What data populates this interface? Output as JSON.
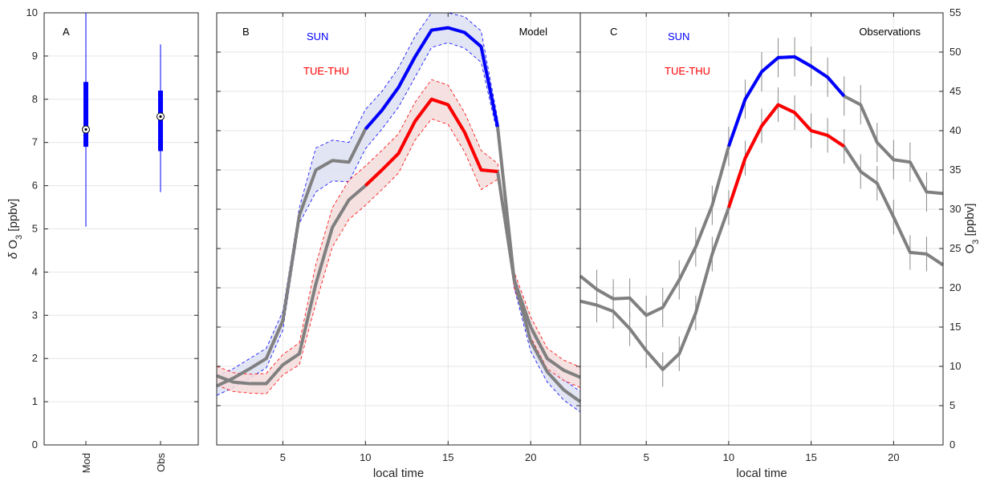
{
  "chart_data": [
    {
      "panel": "A",
      "type": "box",
      "ylabel": "δ O3 [ppbv]",
      "ylim": [
        0,
        10
      ],
      "yticks": [
        0,
        1,
        2,
        3,
        4,
        5,
        6,
        7,
        8,
        9,
        10
      ],
      "categories": [
        "Mod",
        "Obs"
      ],
      "boxes": [
        {
          "name": "Mod",
          "median": 7.3,
          "q1": 6.9,
          "q3": 8.4,
          "whisker_low": 5.05,
          "whisker_high": 10.0
        },
        {
          "name": "Obs",
          "median": 7.6,
          "q1": 6.8,
          "q3": 8.2,
          "whisker_low": 5.85,
          "whisker_high": 9.27
        }
      ],
      "color": "#0000ff",
      "grid": true
    },
    {
      "panel": "B",
      "type": "line",
      "title": "Model",
      "xlabel": "local time",
      "xlim": [
        1,
        23
      ],
      "xticks": [
        5,
        10,
        15,
        20
      ],
      "ylim": [
        0,
        55
      ],
      "grid": true,
      "legend": [
        {
          "label": "SUN",
          "color": "#0000ff"
        },
        {
          "label": "TUE-THU",
          "color": "#ff0000"
        }
      ],
      "highlight_range": [
        10,
        18
      ],
      "x": [
        1,
        2,
        3,
        4,
        5,
        6,
        7,
        8,
        9,
        10,
        11,
        12,
        13,
        14,
        15,
        16,
        17,
        18,
        19,
        20,
        21,
        22,
        23
      ],
      "series": [
        {
          "name": "SUN",
          "values": [
            7.5,
            8.5,
            9.7,
            11.0,
            15.8,
            29.2,
            35.0,
            36.2,
            36.0,
            40.2,
            42.6,
            45.5,
            49.4,
            52.8,
            53.1,
            52.5,
            50.7,
            40.5,
            21.0,
            13.2,
            9.3,
            7.0,
            5.5
          ],
          "upper": [
            8.8,
            9.7,
            11.0,
            12.3,
            17.0,
            30.2,
            37.8,
            38.8,
            38.5,
            42.7,
            45.0,
            48.0,
            52.0,
            55.0,
            55.0,
            54.5,
            52.7,
            41.5,
            22.0,
            14.5,
            10.6,
            8.3,
            6.8
          ],
          "lower": [
            6.3,
            7.3,
            8.5,
            9.8,
            14.6,
            28.2,
            32.2,
            33.6,
            33.5,
            37.7,
            40.2,
            43.0,
            46.8,
            50.6,
            51.2,
            50.5,
            48.7,
            39.5,
            20.0,
            11.9,
            8.0,
            5.7,
            4.2
          ]
        },
        {
          "name": "TUE-THU",
          "values": [
            8.8,
            8.0,
            7.8,
            7.8,
            10.2,
            11.6,
            20.5,
            27.7,
            31.2,
            33.0,
            35.0,
            37.1,
            41.2,
            44.0,
            43.3,
            39.8,
            35.0,
            34.8,
            21.0,
            15.0,
            11.0,
            9.5,
            8.6
          ],
          "upper": [
            10.0,
            9.2,
            9.0,
            9.1,
            11.5,
            13.0,
            23.0,
            30.2,
            33.7,
            35.5,
            37.5,
            39.6,
            43.6,
            46.5,
            45.8,
            42.3,
            37.5,
            35.8,
            22.0,
            16.3,
            12.3,
            10.8,
            9.9
          ],
          "lower": [
            7.6,
            6.8,
            6.6,
            6.5,
            8.9,
            10.2,
            18.0,
            25.2,
            28.7,
            30.5,
            32.5,
            34.6,
            38.8,
            41.5,
            40.8,
            37.3,
            32.5,
            33.8,
            20.0,
            13.7,
            9.7,
            8.2,
            7.3
          ]
        }
      ]
    },
    {
      "panel": "C",
      "type": "line",
      "title": "Observations",
      "xlabel": "local time",
      "xlim": [
        1,
        23
      ],
      "xticks": [
        5,
        10,
        15,
        20
      ],
      "ylabel": "O3 [ppbv]",
      "ylim": [
        0,
        55
      ],
      "yticks": [
        0,
        5,
        10,
        15,
        20,
        25,
        30,
        35,
        40,
        45,
        50,
        55
      ],
      "grid": true,
      "legend": [
        {
          "label": "SUN",
          "color": "#0000ff"
        },
        {
          "label": "TUE-THU",
          "color": "#ff0000"
        }
      ],
      "highlight_range": [
        10,
        17
      ],
      "x": [
        1,
        2,
        3,
        4,
        5,
        6,
        7,
        8,
        9,
        10,
        11,
        12,
        13,
        14,
        15,
        16,
        17,
        18,
        19,
        20,
        21,
        22,
        23
      ],
      "series": [
        {
          "name": "SUN",
          "values": [
            21.5,
            19.8,
            18.6,
            18.7,
            16.5,
            17.5,
            21.0,
            25.2,
            30.5,
            38.0,
            44.0,
            47.5,
            49.3,
            49.4,
            48.2,
            46.8,
            44.4,
            43.3,
            38.5,
            36.3,
            36.0,
            32.2,
            32.0
          ],
          "err": [
            2.5,
            2.5,
            2.5,
            2.5,
            2.5,
            2.5,
            2.5,
            2.5,
            2.5,
            2.5,
            2.5,
            2.5,
            2.5,
            2.5,
            2.5,
            2.5,
            2.5,
            2.5,
            2.5,
            2.5,
            2.5,
            2.5,
            2.5
          ]
        },
        {
          "name": "TUE-THU",
          "values": [
            18.3,
            17.8,
            17.0,
            14.8,
            12.0,
            9.6,
            11.6,
            16.8,
            24.3,
            30.2,
            36.5,
            40.6,
            43.3,
            42.3,
            40.0,
            39.4,
            38.0,
            34.8,
            33.3,
            29.0,
            24.5,
            24.3,
            22.9
          ],
          "err": [
            2.2,
            2.2,
            2.2,
            2.2,
            2.2,
            2.2,
            2.2,
            2.2,
            2.2,
            2.2,
            2.2,
            2.2,
            2.2,
            2.2,
            2.2,
            2.2,
            2.2,
            2.2,
            2.2,
            2.2,
            2.2,
            2.2,
            2.2
          ]
        }
      ]
    }
  ],
  "colors": {
    "sun": "#0000ff",
    "tue_thu": "#ff0000",
    "gray": "#808080",
    "sun_band": "#dde0f2",
    "tue_band": "#f5dcdc"
  }
}
